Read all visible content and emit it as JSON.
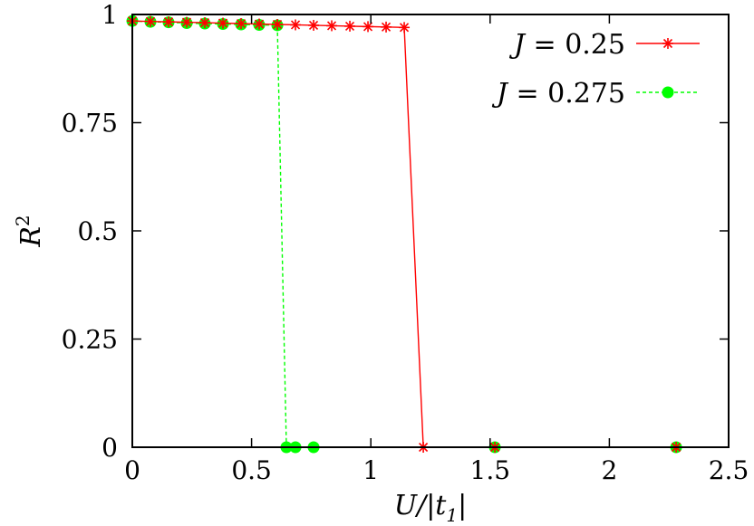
{
  "chart_data": {
    "type": "line",
    "xlabel": "U/|t1|",
    "ylabel": "R2",
    "xlim": [
      0,
      2.5
    ],
    "ylim": [
      0,
      1
    ],
    "xticks": [
      "0",
      "0.5",
      "1",
      "1.5",
      "2",
      "2.5"
    ],
    "yticks": [
      "0",
      "0.25",
      "0.5",
      "0.75",
      "1"
    ],
    "legend_position": "top-right",
    "series": [
      {
        "name": "J = 0.25",
        "color": "#ff0000",
        "marker": "star",
        "line": "solid",
        "x": [
          0,
          0.076,
          0.152,
          0.228,
          0.304,
          0.38,
          0.456,
          0.532,
          0.608,
          0.684,
          0.76,
          0.836,
          0.912,
          0.988,
          1.064,
          1.14,
          1.22,
          1.52,
          2.28
        ],
        "y": [
          0.985,
          0.984,
          0.983,
          0.982,
          0.981,
          0.98,
          0.979,
          0.978,
          0.977,
          0.976,
          0.975,
          0.974,
          0.973,
          0.972,
          0.971,
          0.97,
          0.0,
          0.0,
          0.0
        ]
      },
      {
        "name": "J = 0.275",
        "color": "#00ff00",
        "marker": "circle",
        "line": "dashed",
        "x": [
          0,
          0.076,
          0.152,
          0.228,
          0.304,
          0.38,
          0.456,
          0.532,
          0.608,
          0.646,
          0.684,
          0.76,
          1.52,
          2.28
        ],
        "y": [
          0.985,
          0.983,
          0.982,
          0.98,
          0.979,
          0.978,
          0.977,
          0.976,
          0.975,
          0.0,
          0.0,
          0.0,
          0.0,
          0.0
        ]
      }
    ]
  }
}
